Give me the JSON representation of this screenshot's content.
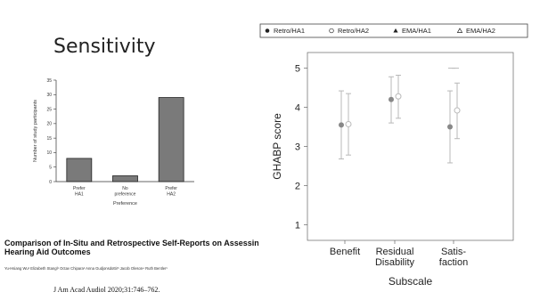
{
  "slide": {
    "title": "Sensitivity",
    "paper_title": "Comparison of In-Situ and Retrospective Self-Reports on Assessing Hearing Aid Outcomes",
    "authors": "Yu-Hsiang Wu¹  Elizabeth Stangl¹  Octav Chipara²  Anna Gudjonsdottir³  Jacob Oleson⁴  Ruth Bentler¹",
    "journal": "J Am Acad Audiol 2020;31:746–762."
  },
  "chart_data": [
    {
      "type": "bar",
      "categories": [
        "Prefer HA1",
        "No preference",
        "Prefer HA2"
      ],
      "values": [
        8,
        2,
        29
      ],
      "xlabel": "Preference",
      "ylabel": "Number of study participants",
      "ylim": [
        0,
        35
      ],
      "yticks": [
        0,
        5,
        10,
        15,
        20,
        25,
        30,
        35
      ],
      "bar_color": "#7a7a7a",
      "grid": false
    },
    {
      "type": "scatter",
      "categories": [
        "Benefit",
        "Residual Disability",
        "Satis- faction"
      ],
      "category_lines": [
        [
          "Benefit"
        ],
        [
          "Residual",
          "Disability"
        ],
        [
          "Satis-",
          "faction"
        ]
      ],
      "xlabel": "Subscale",
      "ylabel": "GHABP score",
      "ylim": [
        0.6,
        5.4
      ],
      "yticks": [
        1,
        2,
        3,
        4,
        5
      ],
      "legend_position": "top",
      "series": [
        {
          "name": "Retro/HA1",
          "marker": "filled-circle",
          "values": [
            3.55,
            4.2,
            3.5
          ],
          "err_low": [
            2.68,
            3.6,
            2.58
          ],
          "err_high": [
            4.42,
            4.78,
            4.42
          ]
        },
        {
          "name": "Retro/HA2",
          "marker": "open-circle",
          "values": [
            3.57,
            4.28,
            3.92
          ],
          "err_low": [
            2.78,
            3.72,
            3.2
          ],
          "err_high": [
            4.35,
            4.82,
            4.62
          ]
        },
        {
          "name": "EMA/HA1",
          "marker": "filled-triangle",
          "values": [
            null,
            null,
            5.0
          ],
          "err_low": [
            null,
            null,
            null
          ],
          "err_high": [
            null,
            null,
            null
          ]
        },
        {
          "name": "EMA/HA2",
          "marker": "open-triangle",
          "values": [
            null,
            null,
            5.0
          ],
          "err_low": [
            null,
            null,
            null
          ],
          "err_high": [
            null,
            null,
            null
          ]
        }
      ],
      "errorbar_color": "#b8b8b8",
      "point_color": "#888888"
    }
  ]
}
